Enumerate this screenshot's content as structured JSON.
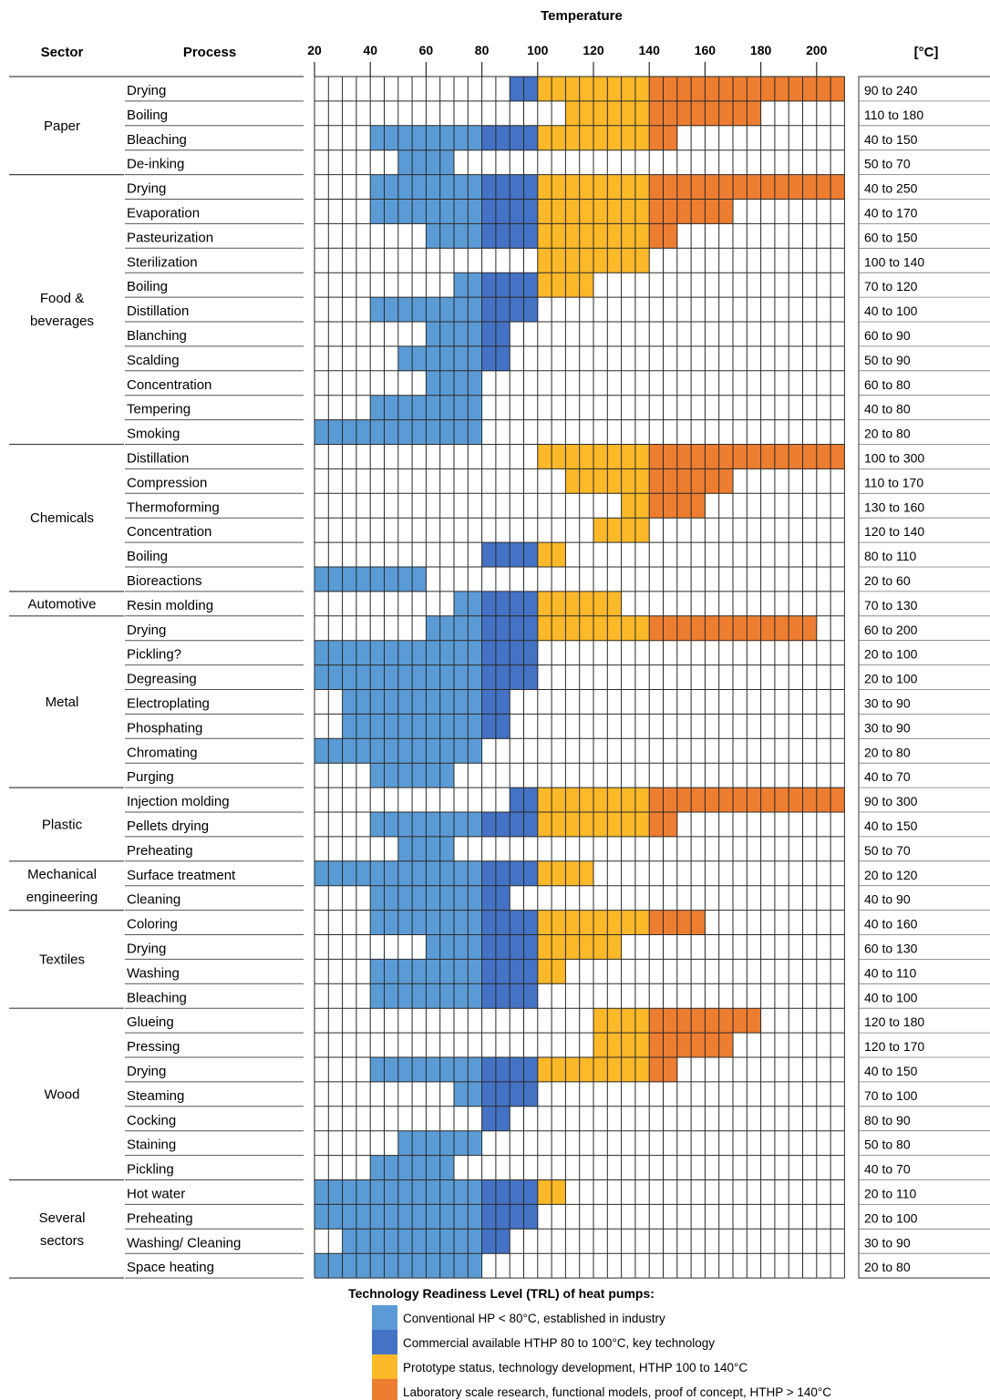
{
  "chart_data": {
    "type": "heatmap",
    "title": "Temperature",
    "headers": {
      "sector": "Sector",
      "process": "Process",
      "unit": "[°C]"
    },
    "x_ticks": [
      "20",
      "40",
      "60",
      "80",
      "100",
      "120",
      "140",
      "160",
      "180",
      "200"
    ],
    "xlim": [
      20,
      214
    ],
    "colors": {
      "conventional": "#5b9bd5",
      "commercial": "#4472c4",
      "prototype": "#fbb828",
      "laboratory": "#ed7d31"
    },
    "sectors": [
      {
        "name": "Paper",
        "lines": [
          "Paper"
        ],
        "rows": 4
      },
      {
        "name": "Food & beverages",
        "lines": [
          "Food &",
          "beverages"
        ],
        "rows": 11
      },
      {
        "name": "Chemicals",
        "lines": [
          "Chemicals"
        ],
        "rows": 6
      },
      {
        "name": "Automotive",
        "lines": [
          "Automotive"
        ],
        "rows": 1
      },
      {
        "name": "Metal",
        "lines": [
          "Metal"
        ],
        "rows": 7
      },
      {
        "name": "Plastic",
        "lines": [
          "Plastic"
        ],
        "rows": 3
      },
      {
        "name": "Mechanical engineering",
        "lines": [
          "Mechanical",
          "engineering"
        ],
        "rows": 2
      },
      {
        "name": "Textiles",
        "lines": [
          "Textiles"
        ],
        "rows": 4
      },
      {
        "name": "Wood",
        "lines": [
          "Wood"
        ],
        "rows": 7
      },
      {
        "name": "Several sectors",
        "lines": [
          "Several",
          "sectors"
        ],
        "rows": 4
      }
    ],
    "rows": [
      {
        "process": "Drying",
        "range": "90 to 240",
        "min": 90,
        "max": 240
      },
      {
        "process": "Boiling",
        "range": "110 to 180",
        "min": 110,
        "max": 180
      },
      {
        "process": "Bleaching",
        "range": "40 to 150",
        "min": 40,
        "max": 150
      },
      {
        "process": "De-inking",
        "range": "50 to 70",
        "min": 50,
        "max": 70
      },
      {
        "process": "Drying",
        "range": "40 to 250",
        "min": 40,
        "max": 250
      },
      {
        "process": "Evaporation",
        "range": "40 to 170",
        "min": 40,
        "max": 170
      },
      {
        "process": "Pasteurization",
        "range": "60 to 150",
        "min": 60,
        "max": 150
      },
      {
        "process": "Sterilization",
        "range": "100 to 140",
        "min": 100,
        "max": 140
      },
      {
        "process": "Boiling",
        "range": "70 to 120",
        "min": 70,
        "max": 120
      },
      {
        "process": "Distillation",
        "range": "40 to 100",
        "min": 40,
        "max": 100
      },
      {
        "process": "Blanching",
        "range": "60 to 90",
        "min": 60,
        "max": 90
      },
      {
        "process": "Scalding",
        "range": "50 to 90",
        "min": 50,
        "max": 90
      },
      {
        "process": "Concentration",
        "range": "60 to 80",
        "min": 60,
        "max": 80
      },
      {
        "process": "Tempering",
        "range": "40 to 80",
        "min": 40,
        "max": 80
      },
      {
        "process": "Smoking",
        "range": "20 to 80",
        "min": 20,
        "max": 80
      },
      {
        "process": "Distillation",
        "range": "100 to 300",
        "min": 100,
        "max": 300
      },
      {
        "process": "Compression",
        "range": "110 to 170",
        "min": 110,
        "max": 170
      },
      {
        "process": "Thermoforming",
        "range": "130 to 160",
        "min": 130,
        "max": 160
      },
      {
        "process": "Concentration",
        "range": "120 to 140",
        "min": 120,
        "max": 140
      },
      {
        "process": "Boiling",
        "range": "80 to 110",
        "min": 80,
        "max": 110
      },
      {
        "process": "Bioreactions",
        "range": "20 to 60",
        "min": 20,
        "max": 60
      },
      {
        "process": "Resin molding",
        "range": "70 to 130",
        "min": 70,
        "max": 130
      },
      {
        "process": "Drying",
        "range": "60 to 200",
        "min": 60,
        "max": 200
      },
      {
        "process": "Pickling?",
        "range": "20 to 100",
        "min": 20,
        "max": 100
      },
      {
        "process": "Degreasing",
        "range": "20 to 100",
        "min": 20,
        "max": 100
      },
      {
        "process": "Electroplating",
        "range": "30 to 90",
        "min": 30,
        "max": 90
      },
      {
        "process": "Phosphating",
        "range": "30 to 90",
        "min": 30,
        "max": 90
      },
      {
        "process": "Chromating",
        "range": "20 to 80",
        "min": 20,
        "max": 80
      },
      {
        "process": "Purging",
        "range": "40 to 70",
        "min": 40,
        "max": 70
      },
      {
        "process": "Injection molding",
        "range": "90 to 300",
        "min": 90,
        "max": 300
      },
      {
        "process": "Pellets drying",
        "range": "40 to 150",
        "min": 40,
        "max": 150
      },
      {
        "process": "Preheating",
        "range": "50 to 70",
        "min": 50,
        "max": 70
      },
      {
        "process": "Surface treatment",
        "range": "20 to 120",
        "min": 20,
        "max": 120
      },
      {
        "process": "Cleaning",
        "range": "40 to 90",
        "min": 40,
        "max": 90
      },
      {
        "process": "Coloring",
        "range": "40 to 160",
        "min": 40,
        "max": 160
      },
      {
        "process": "Drying",
        "range": "60 to 130",
        "min": 60,
        "max": 130
      },
      {
        "process": "Washing",
        "range": "40 to 110",
        "min": 40,
        "max": 110
      },
      {
        "process": "Bleaching",
        "range": "40 to 100",
        "min": 40,
        "max": 100
      },
      {
        "process": "Glueing",
        "range": "120 to 180",
        "min": 120,
        "max": 180
      },
      {
        "process": "Pressing",
        "range": "120 to 170",
        "min": 120,
        "max": 170
      },
      {
        "process": "Drying",
        "range": "40 to 150",
        "min": 40,
        "max": 150
      },
      {
        "process": "Steaming",
        "range": "70 to 100",
        "min": 70,
        "max": 100
      },
      {
        "process": "Cocking",
        "range": "80 to 90",
        "min": 80,
        "max": 90
      },
      {
        "process": "Staining",
        "range": "50 to 80",
        "min": 50,
        "max": 80
      },
      {
        "process": "Pickling",
        "range": "40 to 70",
        "min": 40,
        "max": 70
      },
      {
        "process": "Hot water",
        "range": "20 to 110",
        "min": 20,
        "max": 110
      },
      {
        "process": "Preheating",
        "range": "20 to 100",
        "min": 20,
        "max": 100
      },
      {
        "process": "Washing/ Cleaning",
        "range": "30 to 90",
        "min": 30,
        "max": 90
      },
      {
        "process": "Space heating",
        "range": "20 to 80",
        "min": 20,
        "max": 80
      }
    ],
    "legend": {
      "title": "Technology Readiness Level (TRL) of heat pumps:",
      "placement": "bottom",
      "items": [
        {
          "key": "conventional",
          "label": "Conventional HP < 80°C, established in industry"
        },
        {
          "key": "commercial",
          "label": "Commercial available HTHP 80 to 100°C, key technology"
        },
        {
          "key": "prototype",
          "label": "Prototype status, technology development, HTHP 100 to 140°C"
        },
        {
          "key": "laboratory",
          "label": "Laboratory scale research, functional models, proof of concept, HTHP > 140°C"
        }
      ]
    }
  }
}
